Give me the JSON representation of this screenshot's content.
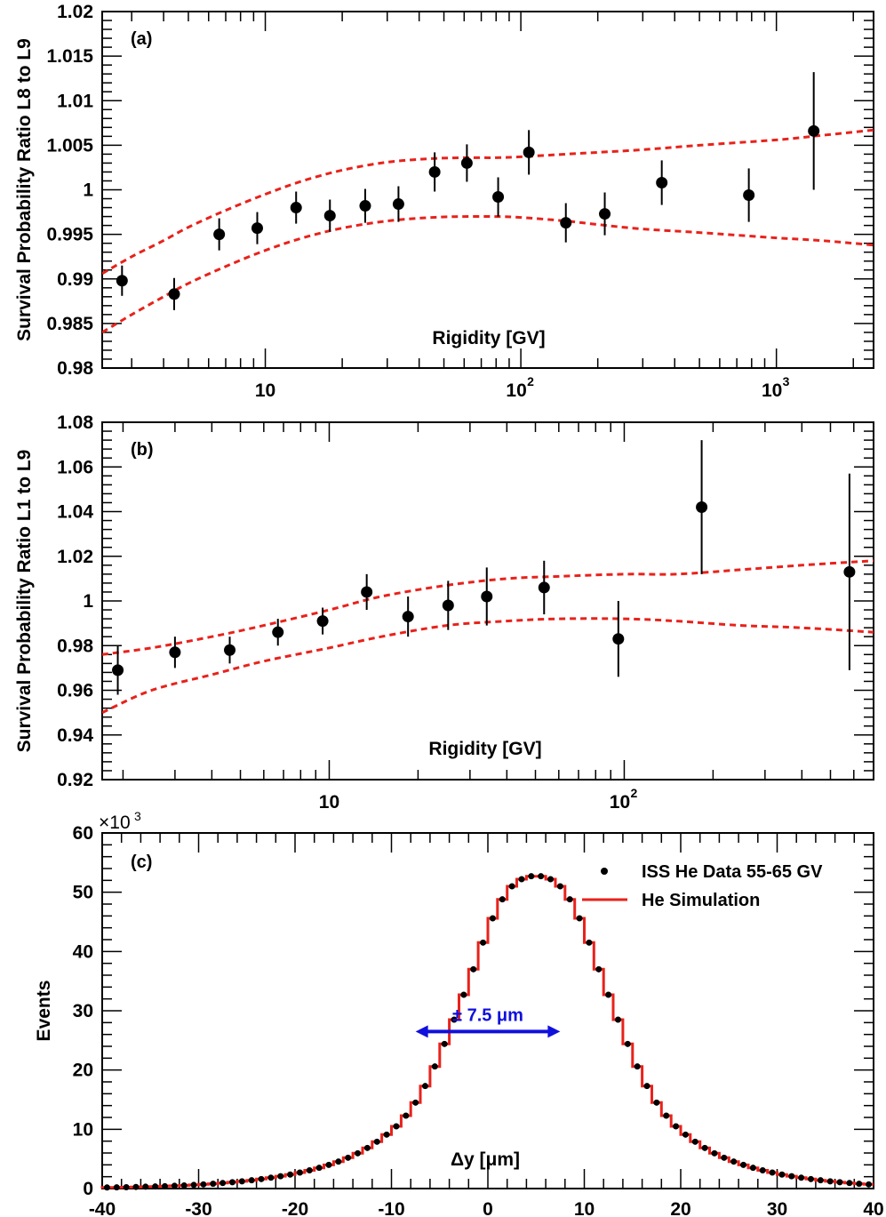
{
  "chart_data": [
    {
      "type": "scatter",
      "panel_label": "(a)",
      "xlabel": "Rigidity [GV]",
      "ylabel": "Survival Probability Ratio L8 to L9",
      "xscale": "log",
      "xlim": [
        2.3,
        2400
      ],
      "ylim": [
        0.98,
        1.02
      ],
      "yticks": [
        {
          "value": 0.98,
          "label": "0.98"
        },
        {
          "value": 0.985,
          "label": "0.985"
        },
        {
          "value": 0.99,
          "label": "0.99"
        },
        {
          "value": 0.995,
          "label": "0.995"
        },
        {
          "value": 1.0,
          "label": "1"
        },
        {
          "value": 1.005,
          "label": "1.005"
        },
        {
          "value": 1.01,
          "label": "1.01"
        },
        {
          "value": 1.015,
          "label": "1.015"
        },
        {
          "value": 1.02,
          "label": "1.02"
        }
      ],
      "xticks": [
        {
          "value": 10,
          "label": "10",
          "sup": ""
        },
        {
          "value": 100,
          "label": "10",
          "sup": "2"
        },
        {
          "value": 1000,
          "label": "10",
          "sup": "3"
        }
      ],
      "points": {
        "x": [
          2.75,
          4.4,
          6.6,
          9.3,
          13.2,
          17.9,
          24.6,
          33.2,
          46,
          61.5,
          81.5,
          107.5,
          150,
          213,
          356,
          780,
          1400
        ],
        "y": [
          0.9898,
          0.9883,
          0.995,
          0.9957,
          0.998,
          0.9971,
          0.9982,
          0.9984,
          1.002,
          1.003,
          0.9992,
          1.0042,
          0.9963,
          0.9973,
          1.0008,
          0.9994,
          1.0066
        ],
        "err": [
          0.0017,
          0.0018,
          0.0018,
          0.0018,
          0.0018,
          0.0018,
          0.0019,
          0.002,
          0.0022,
          0.0021,
          0.0022,
          0.0025,
          0.0022,
          0.0024,
          0.0025,
          0.003,
          0.0066
        ]
      },
      "bands": [
        {
          "name": "upper",
          "color": "#e8221b",
          "x": [
            2.3,
            3,
            4,
            5,
            7,
            10,
            14,
            20,
            30,
            45,
            60,
            80,
            100,
            150,
            200,
            300,
            500,
            1000,
            1500,
            2400
          ],
          "y": [
            0.9906,
            0.9925,
            0.9943,
            0.9958,
            0.9977,
            0.9995,
            1.001,
            1.0022,
            1.0031,
            1.0035,
            1.0036,
            1.0036,
            1.0037,
            1.004,
            1.0042,
            1.0045,
            1.005,
            1.0056,
            1.0061,
            1.0067
          ]
        },
        {
          "name": "lower",
          "color": "#e8221b",
          "x": [
            2.3,
            3,
            4,
            5,
            7,
            10,
            14,
            20,
            30,
            45,
            60,
            80,
            100,
            150,
            200,
            300,
            500,
            1000,
            1500,
            2400
          ],
          "y": [
            0.984,
            0.986,
            0.988,
            0.9895,
            0.9914,
            0.9932,
            0.9946,
            0.9957,
            0.9965,
            0.9969,
            0.997,
            0.997,
            0.9969,
            0.9965,
            0.9961,
            0.9956,
            0.9952,
            0.9946,
            0.9943,
            0.9938
          ]
        }
      ]
    },
    {
      "type": "scatter",
      "panel_label": "(b)",
      "xlabel": "Rigidity [GV]",
      "ylabel": "Survival Probability Ratio L1 to L9",
      "xscale": "log",
      "xlim": [
        1.7,
        700
      ],
      "ylim": [
        0.92,
        1.08
      ],
      "yticks": [
        {
          "value": 0.92,
          "label": "0.92"
        },
        {
          "value": 0.94,
          "label": "0.94"
        },
        {
          "value": 0.96,
          "label": "0.96"
        },
        {
          "value": 0.98,
          "label": "0.98"
        },
        {
          "value": 1.0,
          "label": "1"
        },
        {
          "value": 1.02,
          "label": "1.02"
        },
        {
          "value": 1.04,
          "label": "1.04"
        },
        {
          "value": 1.06,
          "label": "1.06"
        },
        {
          "value": 1.08,
          "label": "1.08"
        }
      ],
      "xticks": [
        {
          "value": 10,
          "label": "10",
          "sup": ""
        },
        {
          "value": 100,
          "label": "10",
          "sup": "2"
        }
      ],
      "points": {
        "x": [
          1.92,
          3.0,
          4.6,
          6.7,
          9.5,
          13.4,
          18.5,
          25.3,
          34.2,
          53.5,
          95.5,
          183,
          580
        ],
        "y": [
          0.969,
          0.977,
          0.978,
          0.986,
          0.991,
          1.004,
          0.993,
          0.998,
          1.002,
          1.006,
          0.983,
          1.042,
          1.013
        ],
        "err": [
          0.011,
          0.007,
          0.006,
          0.006,
          0.006,
          0.008,
          0.009,
          0.011,
          0.013,
          0.012,
          0.017,
          0.03,
          0.044
        ]
      },
      "bands": [
        {
          "name": "upper",
          "color": "#e8221b",
          "x": [
            1.7,
            2.5,
            4,
            6,
            10,
            15,
            25,
            40,
            60,
            100,
            150,
            250,
            400,
            700
          ],
          "y": [
            0.976,
            0.979,
            0.984,
            0.989,
            0.996,
            1.002,
            1.007,
            1.01,
            1.011,
            1.012,
            1.012,
            1.014,
            1.016,
            1.018
          ]
        },
        {
          "name": "lower",
          "color": "#e8221b",
          "x": [
            1.7,
            2.5,
            4,
            6,
            10,
            15,
            25,
            40,
            60,
            100,
            150,
            250,
            400,
            700
          ],
          "y": [
            0.95,
            0.96,
            0.967,
            0.973,
            0.979,
            0.984,
            0.989,
            0.991,
            0.992,
            0.992,
            0.991,
            0.989,
            0.988,
            0.986
          ]
        }
      ]
    },
    {
      "type": "histogram",
      "panel_label": "(c)",
      "xlabel": "Δy [μm]",
      "ylabel": "Events",
      "y_multiplier": "×10",
      "y_multiplier_exp": "3",
      "xlim": [
        -40,
        40
      ],
      "ylim": [
        0,
        60
      ],
      "xticks": [
        {
          "value": -40,
          "label": "-40"
        },
        {
          "value": -30,
          "label": "-30"
        },
        {
          "value": -20,
          "label": "-20"
        },
        {
          "value": -10,
          "label": "-10"
        },
        {
          "value": 0,
          "label": "0"
        },
        {
          "value": 10,
          "label": "10"
        },
        {
          "value": 20,
          "label": "20"
        },
        {
          "value": 30,
          "label": "30"
        },
        {
          "value": 40,
          "label": "40"
        }
      ],
      "yticks": [
        {
          "value": 0,
          "label": "0"
        },
        {
          "value": 10,
          "label": "10"
        },
        {
          "value": 20,
          "label": "20"
        },
        {
          "value": 30,
          "label": "30"
        },
        {
          "value": 40,
          "label": "40"
        },
        {
          "value": 50,
          "label": "50"
        },
        {
          "value": 60,
          "label": "60"
        }
      ],
      "bin_width": 1,
      "bin_start": -40,
      "data_counts_k": [
        0.18,
        0.2,
        0.23,
        0.27,
        0.31,
        0.35,
        0.4,
        0.46,
        0.53,
        0.61,
        0.7,
        0.81,
        0.93,
        1.07,
        1.22,
        1.4,
        1.6,
        1.83,
        2.08,
        2.36,
        2.7,
        3.07,
        3.5,
        3.99,
        4.55,
        5.2,
        5.95,
        6.85,
        7.9,
        9.1,
        10.5,
        12.3,
        14.5,
        17.3,
        20.6,
        24.4,
        28.5,
        32.7,
        37.0,
        41.5,
        45.6,
        48.8,
        51.0,
        52.2,
        52.7,
        52.7,
        52.2,
        51.0,
        48.8,
        45.6,
        41.5,
        37.0,
        32.7,
        28.5,
        24.4,
        20.6,
        17.3,
        14.5,
        12.3,
        10.5,
        9.1,
        7.9,
        6.85,
        5.95,
        5.2,
        4.55,
        3.99,
        3.5,
        3.07,
        2.7,
        2.36,
        2.08,
        1.83,
        1.6,
        1.4,
        1.22,
        1.07,
        0.93,
        0.81,
        0.7
      ],
      "legend": [
        {
          "label": "ISS He Data  55-65 GV",
          "marker": "dot",
          "color": "#000000"
        },
        {
          "label": "He Simulation",
          "marker": "line",
          "color": "#e8221b"
        }
      ],
      "annotation": {
        "text": "± 7.5 μm",
        "x_from": -7.5,
        "x_to": 7.5,
        "y": 26.5,
        "color": "#1010dd"
      }
    }
  ]
}
